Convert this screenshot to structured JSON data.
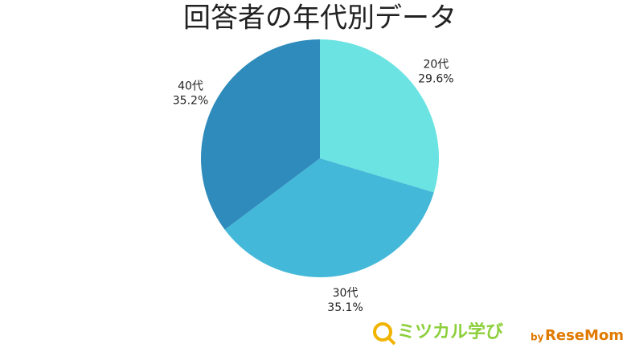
{
  "chart_data": {
    "type": "pie",
    "title": "回答者の年代別データ",
    "categories": [
      "20代",
      "30代",
      "40代"
    ],
    "values": [
      29.6,
      35.1,
      35.2
    ],
    "value_labels": [
      "29.6%",
      "35.1%",
      "35.2%"
    ],
    "colors": [
      "#6be3e3",
      "#44b8d8",
      "#2e8bbb"
    ]
  },
  "watermark": {
    "brand": "ミツカル学び",
    "by": "by",
    "site": "ReseMom"
  }
}
